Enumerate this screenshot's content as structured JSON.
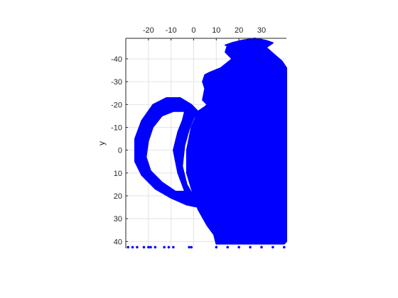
{
  "chart_data": {
    "type": "scatter",
    "title": "",
    "xlabel": "",
    "ylabel": "y",
    "xlim": [
      -30,
      41
    ],
    "ylim": [
      -49,
      43
    ],
    "y_reversed": true,
    "x_axis_location": "top",
    "x_ticks": [
      -20,
      -10,
      0,
      10,
      20,
      30
    ],
    "x_tick_labels": [
      "-20",
      "-10",
      "0",
      "10",
      "20",
      "30"
    ],
    "y_ticks": [
      -40,
      -30,
      -20,
      -10,
      0,
      10,
      20,
      30,
      40
    ],
    "y_tick_labels": [
      "-40",
      "-30",
      "-20",
      "-10",
      "0",
      "10",
      "20",
      "30",
      "40"
    ],
    "grid": true,
    "marker_color": "#0000ff",
    "series": [
      {
        "shape": "teapot-body",
        "outline": [
          [
            14,
            -46
          ],
          [
            17,
            -47
          ],
          [
            21,
            -48
          ],
          [
            27,
            -49
          ],
          [
            32,
            -48
          ],
          [
            35,
            -47
          ],
          [
            32,
            -45
          ],
          [
            39,
            -39
          ],
          [
            41,
            -36
          ],
          [
            41,
            40
          ],
          [
            40,
            41
          ],
          [
            30,
            41
          ],
          [
            10,
            41
          ],
          [
            9,
            37
          ],
          [
            6,
            33
          ],
          [
            2,
            26
          ],
          [
            0,
            20
          ],
          [
            -3,
            10
          ],
          [
            -3,
            0
          ],
          [
            -1,
            -10
          ],
          [
            2,
            -17
          ],
          [
            5,
            -19
          ],
          [
            6,
            -20
          ],
          [
            4,
            -22
          ],
          [
            5,
            -27
          ],
          [
            4,
            -30
          ],
          [
            5,
            -33
          ],
          [
            7,
            -34
          ],
          [
            12,
            -36
          ],
          [
            17,
            -40
          ],
          [
            14,
            -43
          ],
          [
            15,
            -46
          ]
        ]
      },
      {
        "shape": "teapot-handle",
        "outer": [
          [
            2,
            -17
          ],
          [
            -1,
            -20
          ],
          [
            -6,
            -23
          ],
          [
            -12,
            -23
          ],
          [
            -18,
            -20
          ],
          [
            -23,
            -13
          ],
          [
            -26,
            -5
          ],
          [
            -26,
            5
          ],
          [
            -23,
            11
          ],
          [
            -17,
            17
          ],
          [
            -10,
            21
          ],
          [
            -3,
            24
          ],
          [
            2,
            25
          ],
          [
            3,
            26
          ],
          [
            1,
            22
          ],
          [
            -3,
            15
          ],
          [
            -5,
            7
          ],
          [
            -4,
            -2
          ],
          [
            -2,
            -9
          ],
          [
            0,
            -14
          ]
        ],
        "inner": [
          [
            -4,
            -17
          ],
          [
            -9,
            -17
          ],
          [
            -14,
            -15
          ],
          [
            -18,
            -10
          ],
          [
            -20,
            -4
          ],
          [
            -21,
            3
          ],
          [
            -19,
            9
          ],
          [
            -14,
            14
          ],
          [
            -8,
            18
          ],
          [
            -4,
            18
          ],
          [
            -7,
            10
          ],
          [
            -9,
            0
          ],
          [
            -7,
            -8
          ],
          [
            -5,
            -13
          ]
        ]
      },
      {
        "shape": "stray-points",
        "points": [
          [
            -29,
            42.5
          ],
          [
            -27,
            42.5
          ],
          [
            -25,
            42.5
          ],
          [
            -22,
            42.5
          ],
          [
            -20,
            42.5
          ],
          [
            -19,
            42.5
          ],
          [
            -17,
            42.5
          ],
          [
            -13,
            42.5
          ],
          [
            -11,
            42.5
          ],
          [
            -9,
            42.5
          ],
          [
            -2,
            42.5
          ],
          [
            -1,
            42.5
          ],
          [
            10,
            42.5
          ],
          [
            15,
            42.5
          ],
          [
            20,
            42.5
          ],
          [
            25,
            42.5
          ],
          [
            30,
            42.5
          ],
          [
            35,
            42.5
          ],
          [
            40,
            42.5
          ]
        ]
      }
    ]
  }
}
